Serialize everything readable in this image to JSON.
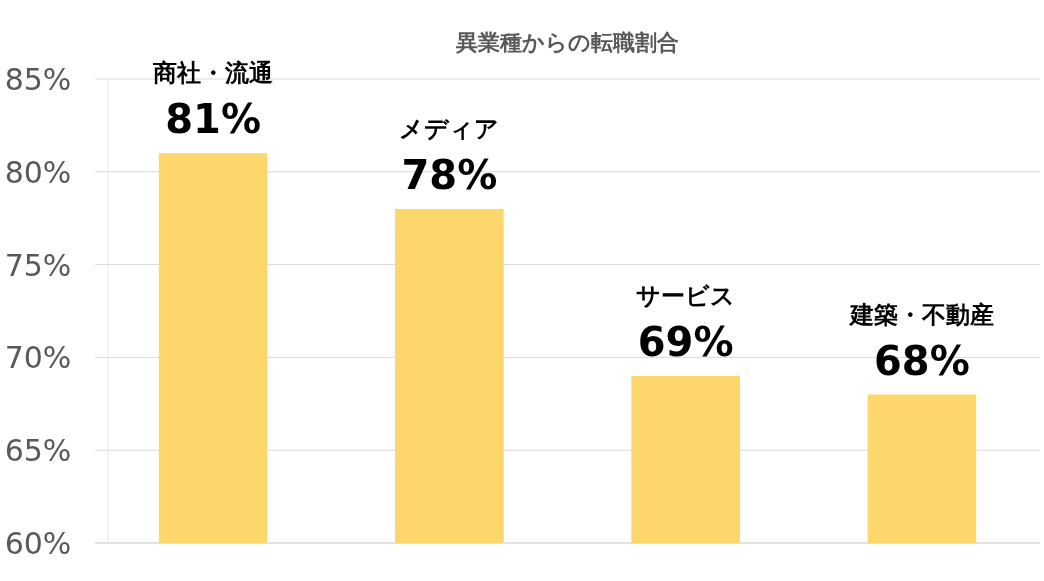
{
  "chart_data": {
    "type": "bar",
    "title": "異業種からの転職割合",
    "categories": [
      "商社・流通",
      "メディア",
      "サービス",
      "建築・不動産"
    ],
    "values": [
      81,
      78,
      69,
      68
    ],
    "value_labels": [
      "81%",
      "78%",
      "69%",
      "68%"
    ],
    "color": "#fdd76b",
    "ylim": [
      60,
      85
    ],
    "yticks": [
      {
        "value": 60,
        "label": "60%"
      },
      {
        "value": 65,
        "label": "65%"
      },
      {
        "value": 70,
        "label": "70%"
      },
      {
        "value": 75,
        "label": "75%"
      },
      {
        "value": 80,
        "label": "80%"
      },
      {
        "value": 85,
        "label": "85%"
      }
    ],
    "grid": "y",
    "tick_labels": "y"
  }
}
